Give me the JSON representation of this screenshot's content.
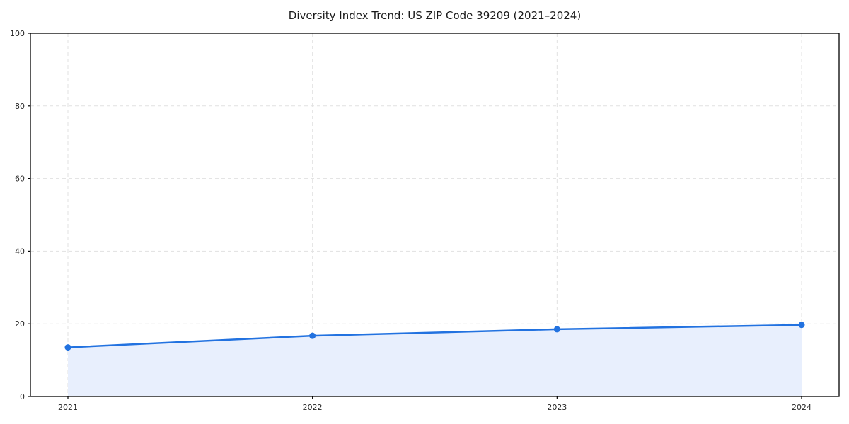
{
  "chart_data": {
    "type": "area",
    "title": "Diversity Index Trend: US ZIP Code 39209 (2021–2024)",
    "categories": [
      "2021",
      "2022",
      "2023",
      "2024"
    ],
    "series": [
      {
        "name": "Diversity Index",
        "values": [
          13.5,
          16.7,
          18.5,
          19.7
        ]
      }
    ],
    "xlabel": "",
    "ylabel": "",
    "ylim": [
      0,
      100
    ],
    "yticks": [
      0,
      20,
      40,
      60,
      80,
      100
    ],
    "grid": "dashed",
    "legend_position": "none",
    "colors": {
      "line": "#2272e0",
      "marker": "#2272e0",
      "area_fill": "#e8effd",
      "grid": "#e1e1e1",
      "spine": "#000000",
      "tick_text": "#262626",
      "background": "#ffffff"
    }
  }
}
